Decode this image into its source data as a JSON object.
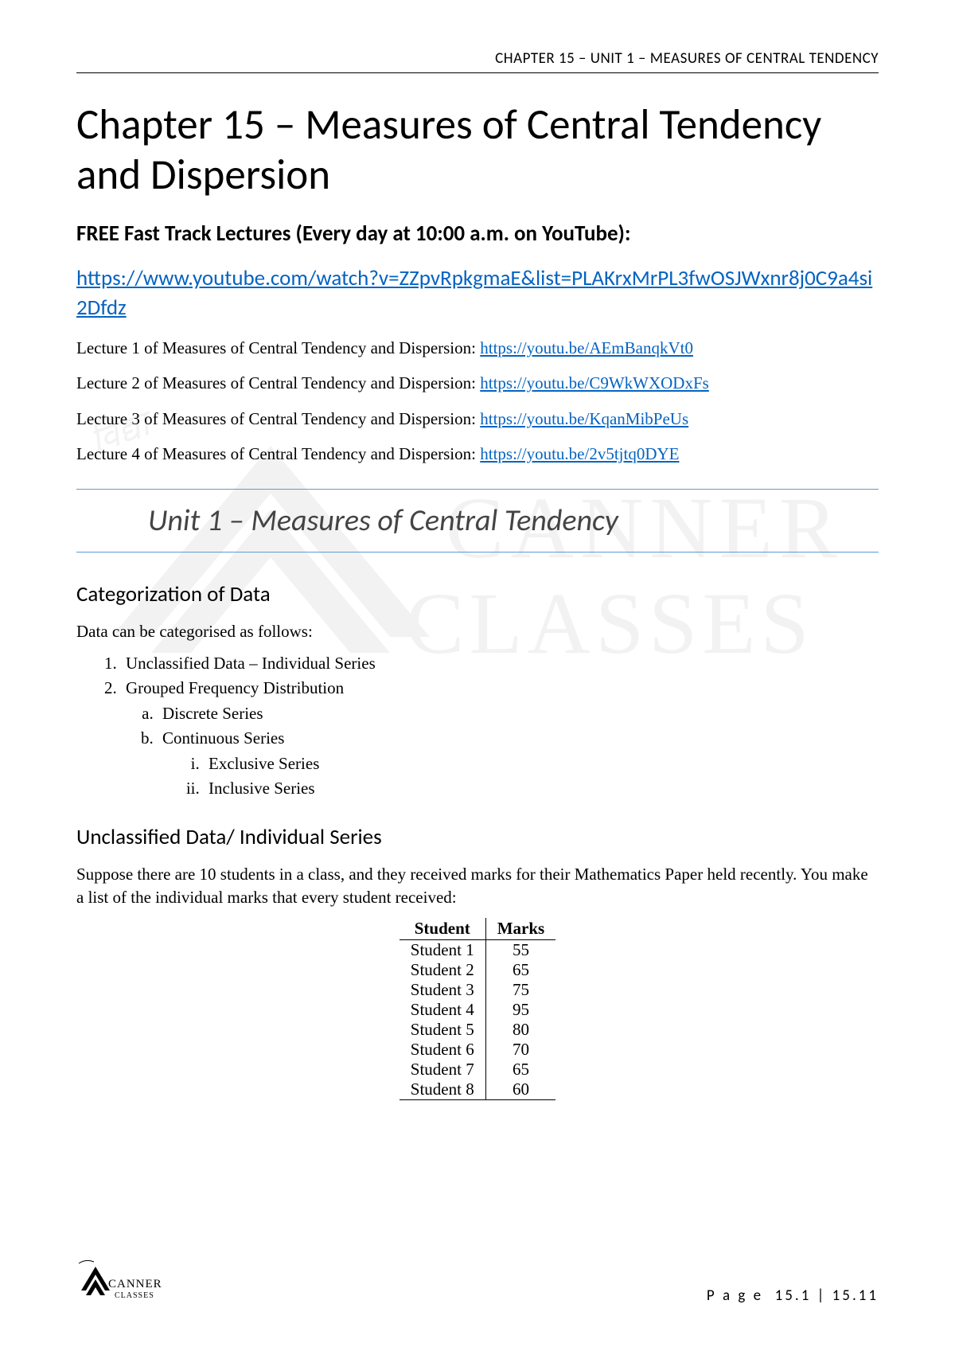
{
  "header": {
    "right": "CHAPTER 15 – UNIT 1 – MEASURES OF CENTRAL TENDENCY"
  },
  "chapter_title": "Chapter 15 – Measures of Central Tendency and Dispersion",
  "subhead": "FREE Fast Track Lectures (Every day at 10:00 a.m. on YouTube):",
  "main_link": "https://www.youtube.com/watch?v=ZZpvRpkgmaE&list=PLAKrxMrPL3fwOSJWxnr8j0C9a4si2Dfdz",
  "lectures": [
    {
      "label": "Lecture 1 of Measures of Central Tendency and Dispersion: ",
      "url": "https://youtu.be/AEmBanqkVt0"
    },
    {
      "label": "Lecture 2 of Measures of Central Tendency and Dispersion: ",
      "url": "https://youtu.be/C9WkWXODxFs"
    },
    {
      "label": "Lecture 3 of Measures of Central Tendency and Dispersion: ",
      "url": "https://youtu.be/KqanMibPeUs"
    },
    {
      "label": "Lecture 4 of Measures of Central Tendency and Dispersion: ",
      "url": "https://youtu.be/2v5tjtq0DYE"
    }
  ],
  "unit_title": "Unit 1 – Measures of Central Tendency",
  "section1": {
    "heading": "Categorization of Data",
    "intro": "Data can be categorised as follows:",
    "list": {
      "i1": "Unclassified Data – Individual Series",
      "i2": "Grouped Frequency Distribution",
      "i2a": "Discrete Series",
      "i2b": "Continuous Series",
      "i2bi": "Exclusive Series",
      "i2bii": "Inclusive Series"
    }
  },
  "section2": {
    "heading": "Unclassified Data/ Individual Series",
    "para": "Suppose there are 10 students in a class, and they received marks for their Mathematics Paper held recently. You make a list of the individual marks that every student received:"
  },
  "marks_table": {
    "col1": "Student",
    "col2": "Marks",
    "rows": [
      {
        "student": "Student 1",
        "marks": "55"
      },
      {
        "student": "Student 2",
        "marks": "65"
      },
      {
        "student": "Student 3",
        "marks": "75"
      },
      {
        "student": "Student 4",
        "marks": "95"
      },
      {
        "student": "Student 5",
        "marks": "80"
      },
      {
        "student": "Student 6",
        "marks": "70"
      },
      {
        "student": "Student 7",
        "marks": "65"
      },
      {
        "student": "Student 8",
        "marks": "60"
      }
    ]
  },
  "footer": {
    "page_label": "P a g e",
    "page_num": "15.1 | 15.11",
    "logo_top": "CANNER",
    "logo_bottom": "CLASSES"
  },
  "colors": {
    "link": "#0563c1",
    "unit_border": "#5b9bd5",
    "text": "#000000",
    "watermark": "#888888"
  }
}
